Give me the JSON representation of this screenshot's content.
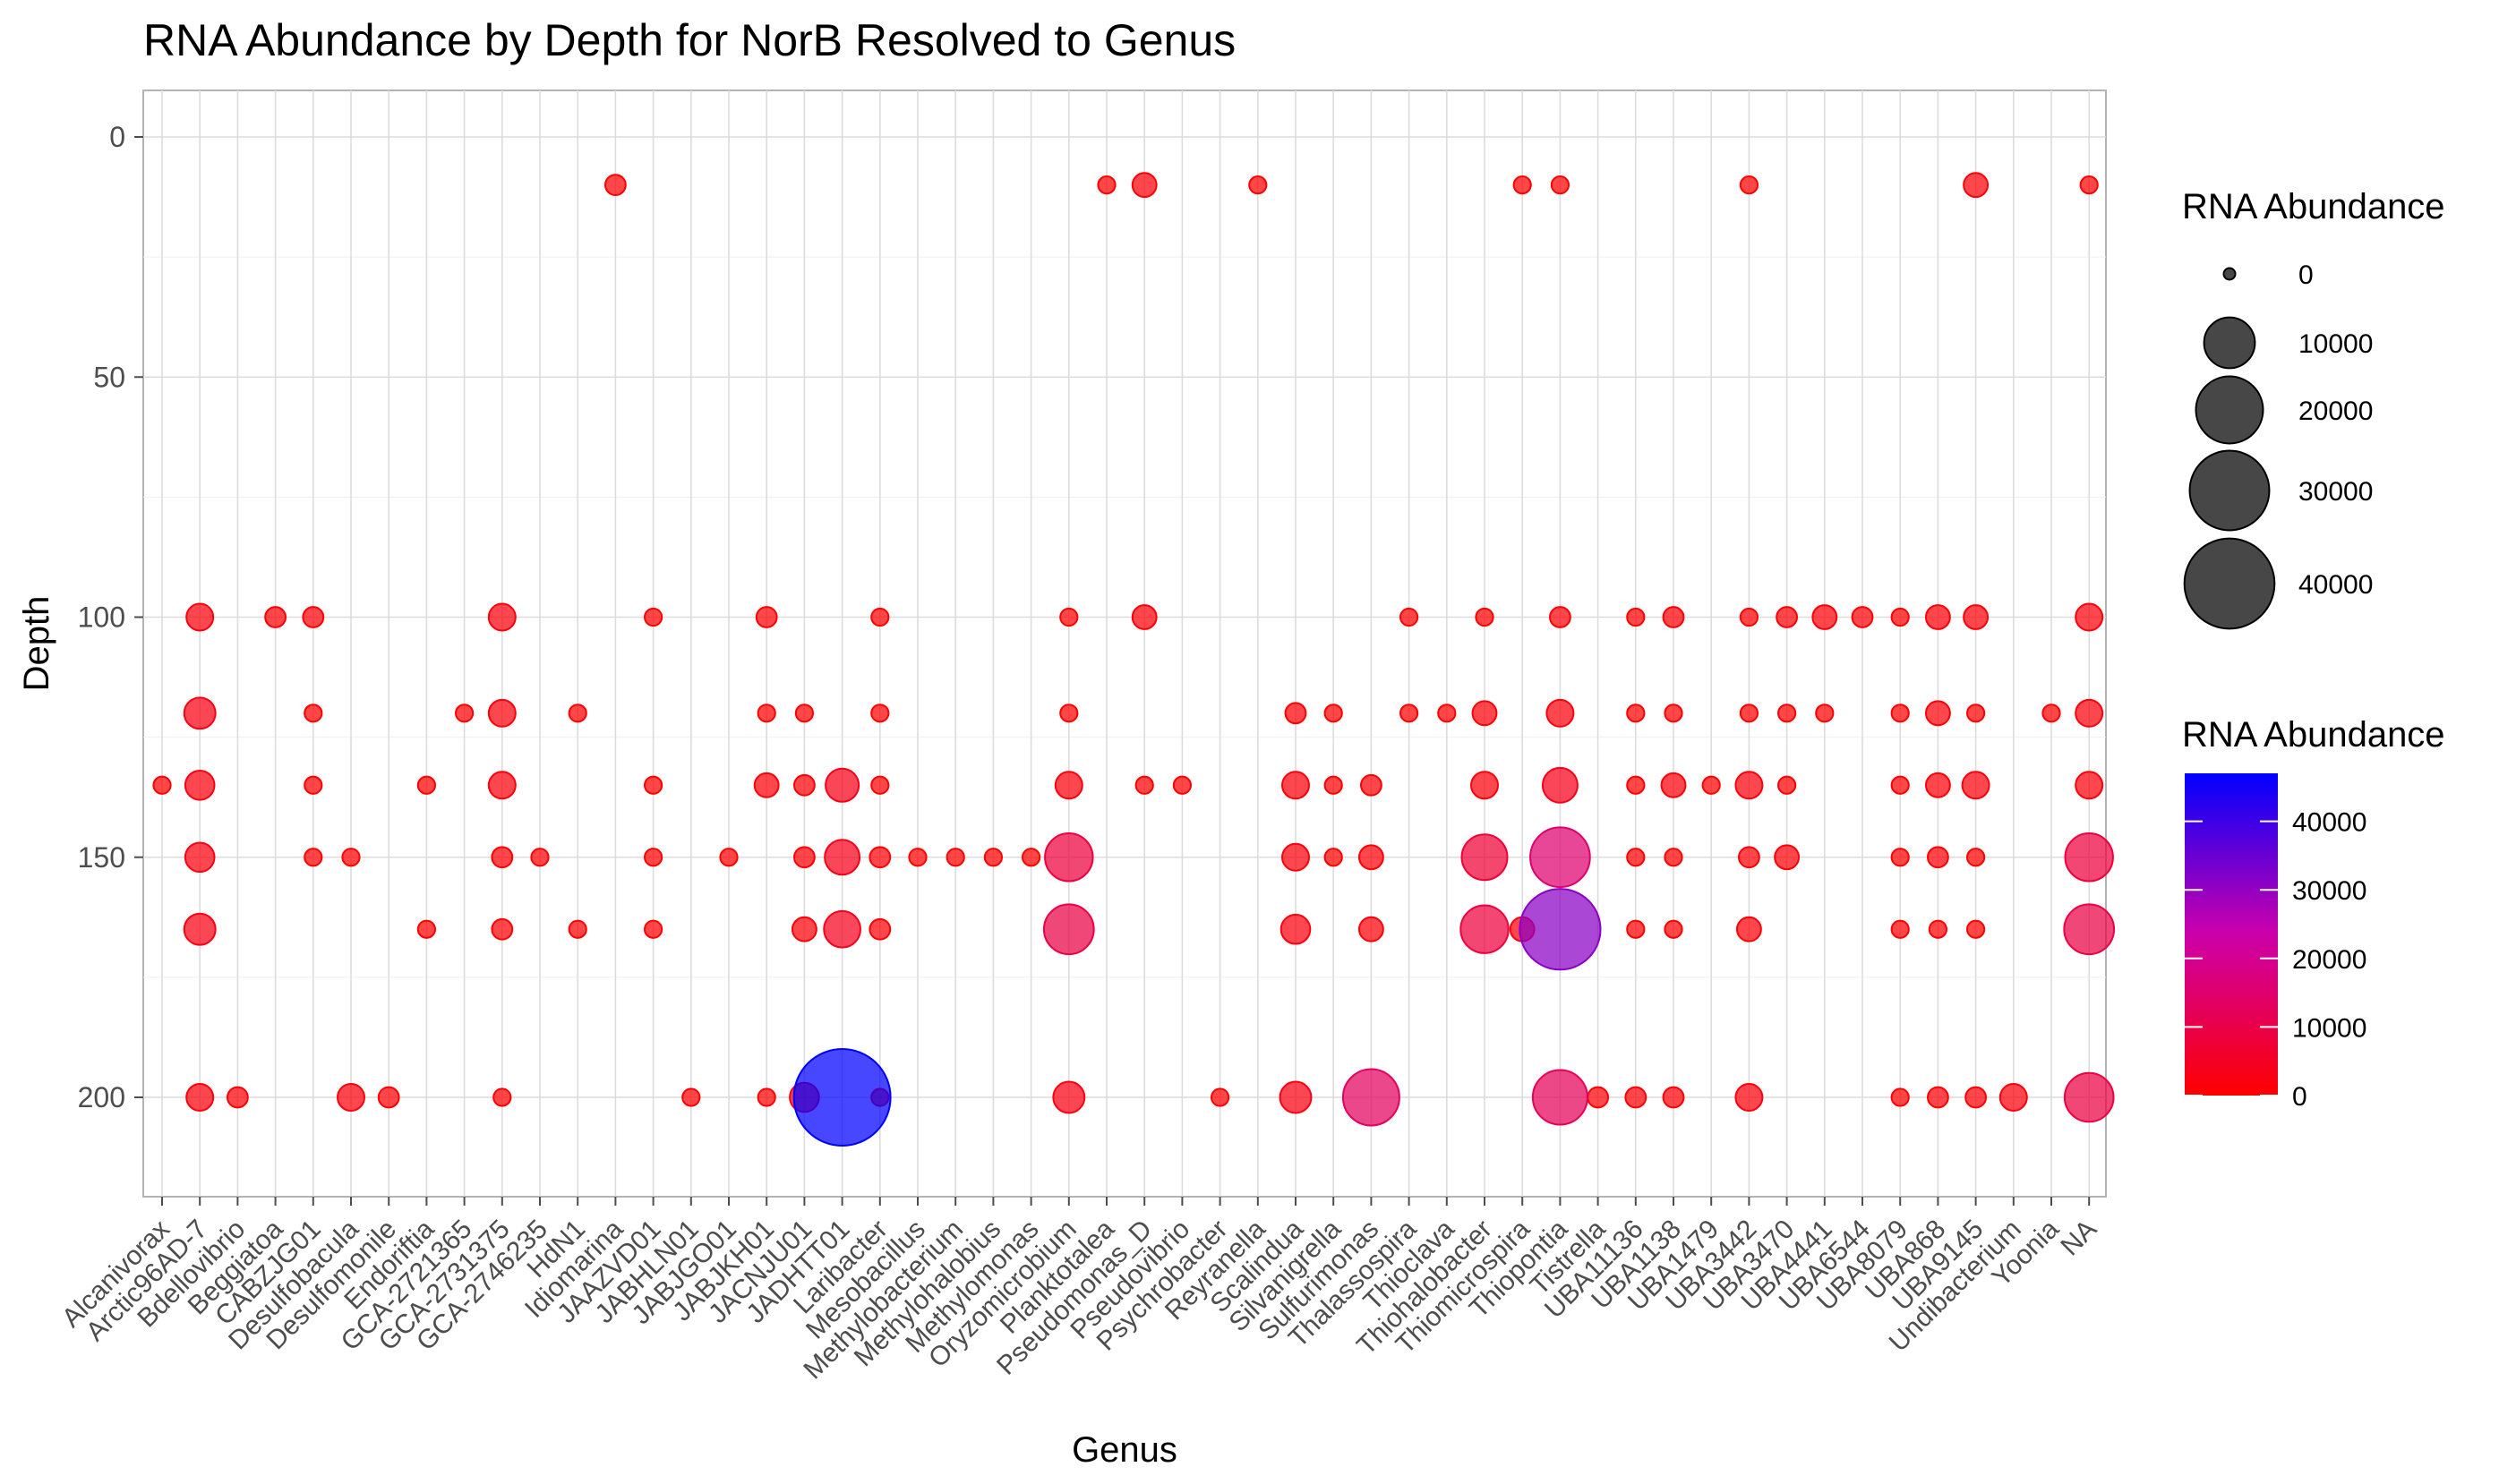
{
  "chart_data": {
    "type": "scatter",
    "title": "RNA Abundance by Depth for NorB Resolved to Genus",
    "xlabel": "Genus",
    "ylabel": "Depth",
    "ylim": [
      220,
      -10
    ],
    "y_ticks": [
      0,
      50,
      100,
      150,
      200
    ],
    "y_reversed": true,
    "grid": true,
    "color_scale": {
      "low": "#FF0000",
      "high": "#0000FF",
      "min": 0,
      "max": 47000
    },
    "size_legend": {
      "title": "RNA Abundance",
      "values": [
        0,
        10000,
        20000,
        30000,
        40000
      ]
    },
    "color_legend": {
      "title": "RNA Abundance",
      "values": [
        0,
        10000,
        20000,
        30000,
        40000
      ]
    },
    "categories": [
      "Alcanivorax",
      "Arctic96AD-7",
      "Bdellovibrio",
      "Beggiatoa",
      "CABZJG01",
      "Desulfobacula",
      "Desulfomonile",
      "Endoriftia",
      "GCA-2721365",
      "GCA-2731375",
      "GCA-2746235",
      "HdN1",
      "Idiomarina",
      "JAAZVD01",
      "JABHLN01",
      "JABJGO01",
      "JABJKH01",
      "JACNJU01",
      "JADHTT01",
      "Laribacter",
      "Mesobacillus",
      "Methylobacterium",
      "Methylohalobius",
      "Methylomonas",
      "Oryzomicrobium",
      "Planktotalea",
      "Pseudomonas_D",
      "Pseudovibrio",
      "Psychrobacter",
      "Reyranella",
      "Scalindua",
      "Silvanigrella",
      "Sulfurimonas",
      "Thalassospira",
      "Thioclava",
      "Thiohalobacter",
      "Thiomicrospira",
      "Thiopontia",
      "Tistrella",
      "UBA11136",
      "UBA1138",
      "UBA1479",
      "UBA3442",
      "UBA3470",
      "UBA4441",
      "UBA6544",
      "UBA8079",
      "UBA868",
      "UBA9145",
      "Undibacterium",
      "Yoonia",
      "NA"
    ],
    "points": [
      {
        "genus": "Alcanivorax",
        "depth": 135,
        "rna": 200
      },
      {
        "genus": "Arctic96AD-7",
        "depth": 100,
        "rna": 1500
      },
      {
        "genus": "Arctic96AD-7",
        "depth": 120,
        "rna": 2500
      },
      {
        "genus": "Arctic96AD-7",
        "depth": 135,
        "rna": 2000
      },
      {
        "genus": "Arctic96AD-7",
        "depth": 150,
        "rna": 2000
      },
      {
        "genus": "Arctic96AD-7",
        "depth": 165,
        "rna": 2500
      },
      {
        "genus": "Arctic96AD-7",
        "depth": 200,
        "rna": 1500
      },
      {
        "genus": "Bdellovibrio",
        "depth": 200,
        "rna": 500
      },
      {
        "genus": "Beggiatoa",
        "depth": 100,
        "rna": 500
      },
      {
        "genus": "CABZJG01",
        "depth": 100,
        "rna": 500
      },
      {
        "genus": "CABZJG01",
        "depth": 120,
        "rna": 200
      },
      {
        "genus": "CABZJG01",
        "depth": 135,
        "rna": 200
      },
      {
        "genus": "CABZJG01",
        "depth": 150,
        "rna": 200
      },
      {
        "genus": "Desulfobacula",
        "depth": 150,
        "rna": 200
      },
      {
        "genus": "Desulfobacula",
        "depth": 200,
        "rna": 1500
      },
      {
        "genus": "Desulfomonile",
        "depth": 200,
        "rna": 500
      },
      {
        "genus": "Endoriftia",
        "depth": 135,
        "rna": 200
      },
      {
        "genus": "Endoriftia",
        "depth": 165,
        "rna": 200
      },
      {
        "genus": "GCA-2721365",
        "depth": 120,
        "rna": 200
      },
      {
        "genus": "GCA-2731375",
        "depth": 100,
        "rna": 1500
      },
      {
        "genus": "GCA-2731375",
        "depth": 120,
        "rna": 1500
      },
      {
        "genus": "GCA-2731375",
        "depth": 135,
        "rna": 1500
      },
      {
        "genus": "GCA-2731375",
        "depth": 150,
        "rna": 500
      },
      {
        "genus": "GCA-2731375",
        "depth": 165,
        "rna": 500
      },
      {
        "genus": "GCA-2731375",
        "depth": 200,
        "rna": 200
      },
      {
        "genus": "GCA-2746235",
        "depth": 150,
        "rna": 200
      },
      {
        "genus": "HdN1",
        "depth": 120,
        "rna": 200
      },
      {
        "genus": "HdN1",
        "depth": 165,
        "rna": 200
      },
      {
        "genus": "Idiomarina",
        "depth": 10,
        "rna": 500
      },
      {
        "genus": "JAAZVD01",
        "depth": 100,
        "rna": 200
      },
      {
        "genus": "JAAZVD01",
        "depth": 135,
        "rna": 200
      },
      {
        "genus": "JAAZVD01",
        "depth": 150,
        "rna": 200
      },
      {
        "genus": "JAAZVD01",
        "depth": 165,
        "rna": 200
      },
      {
        "genus": "JABHLN01",
        "depth": 200,
        "rna": 200
      },
      {
        "genus": "JABJGO01",
        "depth": 150,
        "rna": 200
      },
      {
        "genus": "JABJKH01",
        "depth": 100,
        "rna": 500
      },
      {
        "genus": "JABJKH01",
        "depth": 120,
        "rna": 200
      },
      {
        "genus": "JABJKH01",
        "depth": 135,
        "rna": 1000
      },
      {
        "genus": "JABJKH01",
        "depth": 200,
        "rna": 200
      },
      {
        "genus": "JACNJU01",
        "depth": 120,
        "rna": 200
      },
      {
        "genus": "JACNJU01",
        "depth": 135,
        "rna": 500
      },
      {
        "genus": "JACNJU01",
        "depth": 150,
        "rna": 500
      },
      {
        "genus": "JACNJU01",
        "depth": 165,
        "rna": 1000
      },
      {
        "genus": "JACNJU01",
        "depth": 200,
        "rna": 2000
      },
      {
        "genus": "JADHTT01",
        "depth": 135,
        "rna": 3000
      },
      {
        "genus": "JADHTT01",
        "depth": 150,
        "rna": 3500
      },
      {
        "genus": "JADHTT01",
        "depth": 165,
        "rna": 4000
      },
      {
        "genus": "JADHTT01",
        "depth": 200,
        "rna": 47000
      },
      {
        "genus": "Laribacter",
        "depth": 100,
        "rna": 200
      },
      {
        "genus": "Laribacter",
        "depth": 120,
        "rna": 200
      },
      {
        "genus": "Laribacter",
        "depth": 135,
        "rna": 200
      },
      {
        "genus": "Laribacter",
        "depth": 150,
        "rna": 500
      },
      {
        "genus": "Laribacter",
        "depth": 165,
        "rna": 500
      },
      {
        "genus": "Laribacter",
        "depth": 200,
        "rna": 200
      },
      {
        "genus": "Mesobacillus",
        "depth": 150,
        "rna": 200
      },
      {
        "genus": "Methylobacterium",
        "depth": 150,
        "rna": 200
      },
      {
        "genus": "Methylohalobius",
        "depth": 150,
        "rna": 200
      },
      {
        "genus": "Methylomonas",
        "depth": 150,
        "rna": 200
      },
      {
        "genus": "Oryzomicrobium",
        "depth": 100,
        "rna": 200
      },
      {
        "genus": "Oryzomicrobium",
        "depth": 120,
        "rna": 200
      },
      {
        "genus": "Oryzomicrobium",
        "depth": 135,
        "rna": 1500
      },
      {
        "genus": "Oryzomicrobium",
        "depth": 150,
        "rna": 8500
      },
      {
        "genus": "Oryzomicrobium",
        "depth": 165,
        "rna": 9500
      },
      {
        "genus": "Oryzomicrobium",
        "depth": 200,
        "rna": 2500
      },
      {
        "genus": "Planktotalea",
        "depth": 10,
        "rna": 200
      },
      {
        "genus": "Pseudomonas_D",
        "depth": 10,
        "rna": 1000
      },
      {
        "genus": "Pseudomonas_D",
        "depth": 100,
        "rna": 1000
      },
      {
        "genus": "Pseudomonas_D",
        "depth": 135,
        "rna": 200
      },
      {
        "genus": "Pseudovibrio",
        "depth": 135,
        "rna": 200
      },
      {
        "genus": "Psychrobacter",
        "depth": 200,
        "rna": 200
      },
      {
        "genus": "Reyranella",
        "depth": 10,
        "rna": 200
      },
      {
        "genus": "Scalindua",
        "depth": 120,
        "rna": 500
      },
      {
        "genus": "Scalindua",
        "depth": 135,
        "rna": 1500
      },
      {
        "genus": "Scalindua",
        "depth": 150,
        "rna": 1500
      },
      {
        "genus": "Scalindua",
        "depth": 165,
        "rna": 2000
      },
      {
        "genus": "Scalindua",
        "depth": 200,
        "rna": 2500
      },
      {
        "genus": "Silvanigrella",
        "depth": 120,
        "rna": 200
      },
      {
        "genus": "Silvanigrella",
        "depth": 135,
        "rna": 200
      },
      {
        "genus": "Silvanigrella",
        "depth": 150,
        "rna": 200
      },
      {
        "genus": "Sulfurimonas",
        "depth": 135,
        "rna": 500
      },
      {
        "genus": "Sulfurimonas",
        "depth": 150,
        "rna": 1000
      },
      {
        "genus": "Sulfurimonas",
        "depth": 165,
        "rna": 1000
      },
      {
        "genus": "Sulfurimonas",
        "depth": 200,
        "rna": 13000
      },
      {
        "genus": "Thalassospira",
        "depth": 100,
        "rna": 200
      },
      {
        "genus": "Thalassospira",
        "depth": 120,
        "rna": 200
      },
      {
        "genus": "Thioclava",
        "depth": 120,
        "rna": 200
      },
      {
        "genus": "Thiohalobacter",
        "depth": 100,
        "rna": 200
      },
      {
        "genus": "Thiohalobacter",
        "depth": 120,
        "rna": 1000
      },
      {
        "genus": "Thiohalobacter",
        "depth": 135,
        "rna": 1500
      },
      {
        "genus": "Thiohalobacter",
        "depth": 150,
        "rna": 7500
      },
      {
        "genus": "Thiohalobacter",
        "depth": 165,
        "rna": 8500
      },
      {
        "genus": "Thiomicrospira",
        "depth": 10,
        "rna": 200
      },
      {
        "genus": "Thiomicrospira",
        "depth": 165,
        "rna": 1000
      },
      {
        "genus": "Thiopontia",
        "depth": 10,
        "rna": 200
      },
      {
        "genus": "Thiopontia",
        "depth": 100,
        "rna": 500
      },
      {
        "genus": "Thiopontia",
        "depth": 120,
        "rna": 1500
      },
      {
        "genus": "Thiopontia",
        "depth": 135,
        "rna": 3500
      },
      {
        "genus": "Thiopontia",
        "depth": 150,
        "rna": 15000
      },
      {
        "genus": "Thiopontia",
        "depth": 165,
        "rna": 31000
      },
      {
        "genus": "Thiopontia",
        "depth": 200,
        "rna": 12000
      },
      {
        "genus": "Tistrella",
        "depth": 200,
        "rna": 500
      },
      {
        "genus": "UBA11136",
        "depth": 100,
        "rna": 200
      },
      {
        "genus": "UBA11136",
        "depth": 120,
        "rna": 200
      },
      {
        "genus": "UBA11136",
        "depth": 135,
        "rna": 200
      },
      {
        "genus": "UBA11136",
        "depth": 150,
        "rna": 200
      },
      {
        "genus": "UBA11136",
        "depth": 165,
        "rna": 200
      },
      {
        "genus": "UBA11136",
        "depth": 200,
        "rna": 500
      },
      {
        "genus": "UBA1138",
        "depth": 100,
        "rna": 500
      },
      {
        "genus": "UBA1138",
        "depth": 120,
        "rna": 200
      },
      {
        "genus": "UBA1138",
        "depth": 135,
        "rna": 1000
      },
      {
        "genus": "UBA1138",
        "depth": 150,
        "rna": 200
      },
      {
        "genus": "UBA1138",
        "depth": 165,
        "rna": 200
      },
      {
        "genus": "UBA1138",
        "depth": 200,
        "rna": 500
      },
      {
        "genus": "UBA1479",
        "depth": 135,
        "rna": 200
      },
      {
        "genus": "UBA3442",
        "depth": 10,
        "rna": 200
      },
      {
        "genus": "UBA3442",
        "depth": 100,
        "rna": 200
      },
      {
        "genus": "UBA3442",
        "depth": 120,
        "rna": 200
      },
      {
        "genus": "UBA3442",
        "depth": 135,
        "rna": 1500
      },
      {
        "genus": "UBA3442",
        "depth": 150,
        "rna": 500
      },
      {
        "genus": "UBA3442",
        "depth": 165,
        "rna": 1000
      },
      {
        "genus": "UBA3442",
        "depth": 200,
        "rna": 1500
      },
      {
        "genus": "UBA3470",
        "depth": 100,
        "rna": 500
      },
      {
        "genus": "UBA3470",
        "depth": 120,
        "rna": 200
      },
      {
        "genus": "UBA3470",
        "depth": 135,
        "rna": 200
      },
      {
        "genus": "UBA3470",
        "depth": 150,
        "rna": 1000
      },
      {
        "genus": "UBA4441",
        "depth": 100,
        "rna": 1000
      },
      {
        "genus": "UBA4441",
        "depth": 120,
        "rna": 200
      },
      {
        "genus": "UBA6544",
        "depth": 100,
        "rna": 500
      },
      {
        "genus": "UBA8079",
        "depth": 100,
        "rna": 200
      },
      {
        "genus": "UBA8079",
        "depth": 120,
        "rna": 200
      },
      {
        "genus": "UBA8079",
        "depth": 135,
        "rna": 200
      },
      {
        "genus": "UBA8079",
        "depth": 150,
        "rna": 200
      },
      {
        "genus": "UBA8079",
        "depth": 165,
        "rna": 200
      },
      {
        "genus": "UBA8079",
        "depth": 200,
        "rna": 200
      },
      {
        "genus": "UBA868",
        "depth": 100,
        "rna": 1000
      },
      {
        "genus": "UBA868",
        "depth": 120,
        "rna": 1000
      },
      {
        "genus": "UBA868",
        "depth": 135,
        "rna": 1000
      },
      {
        "genus": "UBA868",
        "depth": 150,
        "rna": 500
      },
      {
        "genus": "UBA868",
        "depth": 165,
        "rna": 200
      },
      {
        "genus": "UBA868",
        "depth": 200,
        "rna": 500
      },
      {
        "genus": "UBA9145",
        "depth": 10,
        "rna": 1000
      },
      {
        "genus": "UBA9145",
        "depth": 100,
        "rna": 1000
      },
      {
        "genus": "UBA9145",
        "depth": 120,
        "rna": 200
      },
      {
        "genus": "UBA9145",
        "depth": 135,
        "rna": 1500
      },
      {
        "genus": "UBA9145",
        "depth": 150,
        "rna": 200
      },
      {
        "genus": "UBA9145",
        "depth": 165,
        "rna": 200
      },
      {
        "genus": "UBA9145",
        "depth": 200,
        "rna": 500
      },
      {
        "genus": "Undibacterium",
        "depth": 200,
        "rna": 1500
      },
      {
        "genus": "Yoonia",
        "depth": 120,
        "rna": 200
      },
      {
        "genus": "NA",
        "depth": 10,
        "rna": 200
      },
      {
        "genus": "NA",
        "depth": 100,
        "rna": 1500
      },
      {
        "genus": "NA",
        "depth": 120,
        "rna": 1500
      },
      {
        "genus": "NA",
        "depth": 135,
        "rna": 1500
      },
      {
        "genus": "NA",
        "depth": 150,
        "rna": 8500
      },
      {
        "genus": "NA",
        "depth": 165,
        "rna": 9500
      },
      {
        "genus": "NA",
        "depth": 200,
        "rna": 9000
      }
    ]
  }
}
